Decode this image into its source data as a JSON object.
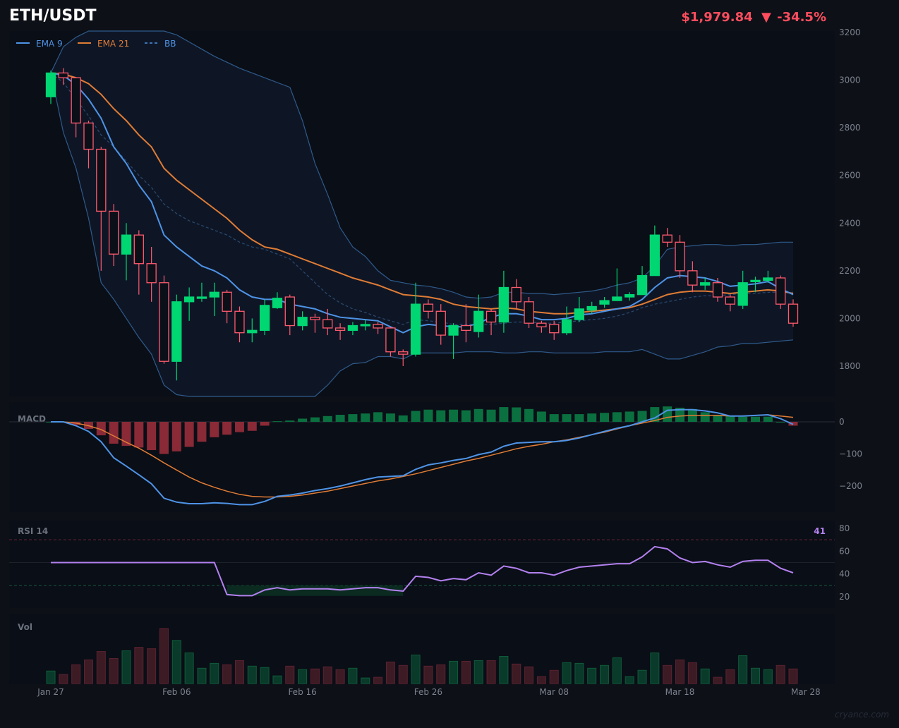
{
  "header": {
    "symbol": "ETH/USDT",
    "price": "$1,979.84",
    "change_arrow": "▼",
    "change_pct": "-34.5%"
  },
  "colors": {
    "up": "#00d672",
    "down": "#ff5a6e",
    "ema9": "#4e93e6",
    "ema21": "#e07c35",
    "bb": "#2f5a8a",
    "rsi": "#b381f0",
    "macd_pos": "#0b7040",
    "macd_neg": "#8a2a37",
    "vol_up": "#0a3a2a",
    "vol_down": "#3d1b24"
  },
  "legend": {
    "ema9": "EMA 9",
    "ema21": "EMA 21",
    "bb": "BB"
  },
  "panes": {
    "macd_label": "MACD",
    "rsi_label": "RSI 14",
    "rsi_value": "41",
    "vol_label": "Vol"
  },
  "watermark": "cryance.com",
  "chart_data": [
    {
      "type": "candlestick",
      "title": "ETH/USDT",
      "x_ticks": [
        "Jan 27",
        "Feb 06",
        "Feb 16",
        "Feb 26",
        "Mar 08",
        "Mar 18",
        "Mar 28"
      ],
      "y_ticks": [
        1800,
        2000,
        2200,
        2400,
        2600,
        2800,
        3000,
        3200
      ],
      "ylim": [
        1650,
        3200
      ],
      "ohlc": [
        [
          2930,
          3030,
          3040,
          2900
        ],
        [
          3030,
          3010,
          3050,
          2980
        ],
        [
          3010,
          2820,
          3010,
          2760
        ],
        [
          2820,
          2710,
          2830,
          2630
        ],
        [
          2710,
          2450,
          2720,
          2200
        ],
        [
          2450,
          2270,
          2480,
          2220
        ],
        [
          2270,
          2350,
          2400,
          2160
        ],
        [
          2350,
          2230,
          2370,
          2100
        ],
        [
          2230,
          2150,
          2300,
          2070
        ],
        [
          2150,
          1820,
          2180,
          1810
        ],
        [
          1820,
          2070,
          2100,
          1740
        ],
        [
          2070,
          2090,
          2130,
          1990
        ],
        [
          2085,
          2090,
          2150,
          2070
        ],
        [
          2090,
          2110,
          2150,
          2010
        ],
        [
          2110,
          2030,
          2120,
          1980
        ],
        [
          2030,
          1940,
          2050,
          1900
        ],
        [
          1940,
          1950,
          2000,
          1900
        ],
        [
          1950,
          2055,
          2080,
          1930
        ],
        [
          2045,
          2085,
          2110,
          2040
        ],
        [
          2090,
          1970,
          2100,
          1930
        ],
        [
          1970,
          2005,
          2030,
          1950
        ],
        [
          2005,
          1995,
          2020,
          1940
        ],
        [
          1995,
          1960,
          2040,
          1930
        ],
        [
          1960,
          1950,
          1980,
          1910
        ],
        [
          1950,
          1970,
          1985,
          1930
        ],
        [
          1970,
          1975,
          1995,
          1950
        ],
        [
          1975,
          1960,
          1985,
          1935
        ],
        [
          1960,
          1860,
          1965,
          1840
        ],
        [
          1860,
          1850,
          1870,
          1800
        ],
        [
          1850,
          2060,
          2150,
          1840
        ],
        [
          2060,
          2030,
          2080,
          2000
        ],
        [
          2030,
          1930,
          2060,
          1890
        ],
        [
          1930,
          1970,
          1980,
          1830
        ],
        [
          1970,
          1950,
          2060,
          1900
        ],
        [
          1945,
          2030,
          2100,
          1920
        ],
        [
          2030,
          1985,
          2040,
          1930
        ],
        [
          1985,
          2130,
          2200,
          1940
        ],
        [
          2130,
          2070,
          2165,
          2040
        ],
        [
          2070,
          1980,
          2090,
          1960
        ],
        [
          1980,
          1965,
          1990,
          1940
        ],
        [
          1975,
          1940,
          1990,
          1910
        ],
        [
          1940,
          1995,
          2050,
          1930
        ],
        [
          1995,
          2040,
          2090,
          1985
        ],
        [
          2035,
          2050,
          2070,
          2020
        ],
        [
          2060,
          2075,
          2090,
          2045
        ],
        [
          2075,
          2090,
          2210,
          2080
        ],
        [
          2090,
          2100,
          2110,
          2075
        ],
        [
          2100,
          2180,
          2220,
          2100
        ],
        [
          2180,
          2350,
          2390,
          2180
        ],
        [
          2350,
          2320,
          2380,
          2300
        ],
        [
          2320,
          2200,
          2350,
          2170
        ],
        [
          2200,
          2140,
          2240,
          2110
        ],
        [
          2140,
          2150,
          2170,
          2120
        ],
        [
          2150,
          2090,
          2170,
          2070
        ],
        [
          2090,
          2060,
          2100,
          2030
        ],
        [
          2055,
          2150,
          2200,
          2040
        ],
        [
          2155,
          2160,
          2175,
          2110
        ],
        [
          2160,
          2170,
          2200,
          2150
        ],
        [
          2170,
          2060,
          2180,
          2040
        ],
        [
          2060,
          1980,
          2080,
          1965
        ]
      ],
      "ema9": [
        3030,
        3020,
        2980,
        2920,
        2840,
        2720,
        2650,
        2560,
        2490,
        2350,
        2300,
        2260,
        2220,
        2200,
        2170,
        2120,
        2090,
        2080,
        2080,
        2060,
        2050,
        2040,
        2020,
        2005,
        2000,
        1995,
        1990,
        1965,
        1940,
        1965,
        1975,
        1970,
        1965,
        1965,
        1980,
        2005,
        2020,
        2020,
        2010,
        1995,
        1995,
        2000,
        2015,
        2020,
        2030,
        2040,
        2050,
        2080,
        2130,
        2170,
        2180,
        2175,
        2170,
        2155,
        2135,
        2140,
        2145,
        2155,
        2125,
        2100
      ],
      "ema21": [
        3030,
        3025,
        3010,
        2985,
        2940,
        2880,
        2830,
        2770,
        2720,
        2630,
        2580,
        2540,
        2500,
        2460,
        2420,
        2370,
        2330,
        2300,
        2290,
        2270,
        2250,
        2230,
        2210,
        2190,
        2170,
        2155,
        2140,
        2120,
        2100,
        2095,
        2090,
        2080,
        2060,
        2050,
        2045,
        2040,
        2045,
        2040,
        2030,
        2025,
        2020,
        2020,
        2025,
        2030,
        2035,
        2040,
        2045,
        2060,
        2080,
        2100,
        2110,
        2115,
        2115,
        2110,
        2105,
        2110,
        2115,
        2120,
        2115,
        2105
      ],
      "bb_upper": [
        3030,
        3140,
        3180,
        3230,
        3250,
        3250,
        3240,
        3230,
        3220,
        3210,
        3190,
        3160,
        3130,
        3100,
        3075,
        3050,
        3030,
        3010,
        2990,
        2970,
        2830,
        2650,
        2520,
        2380,
        2300,
        2260,
        2200,
        2160,
        2150,
        2140,
        2135,
        2125,
        2110,
        2090,
        2085,
        2090,
        2110,
        2110,
        2105,
        2105,
        2100,
        2105,
        2110,
        2115,
        2125,
        2140,
        2150,
        2170,
        2220,
        2290,
        2300,
        2305,
        2310,
        2310,
        2305,
        2310,
        2310,
        2315,
        2320,
        2320
      ],
      "bb_mid": [
        3030,
        2990,
        2920,
        2850,
        2770,
        2720,
        2660,
        2600,
        2550,
        2480,
        2440,
        2410,
        2390,
        2370,
        2350,
        2320,
        2300,
        2290,
        2270,
        2250,
        2200,
        2150,
        2100,
        2065,
        2040,
        2025,
        2005,
        1990,
        1975,
        1995,
        1990,
        1985,
        1975,
        1975,
        1975,
        1975,
        1980,
        1985,
        1985,
        1980,
        1980,
        1985,
        1990,
        1995,
        2000,
        2010,
        2025,
        2045,
        2060,
        2070,
        2080,
        2090,
        2095,
        2095,
        2100,
        2105,
        2105,
        2110,
        2110,
        2110
      ],
      "bb_lower": [
        3030,
        2780,
        2630,
        2420,
        2150,
        2080,
        2000,
        1920,
        1850,
        1720,
        1680,
        1640,
        1590,
        1560,
        1550,
        1530,
        1530,
        1520,
        1515,
        1510,
        1560,
        1660,
        1720,
        1780,
        1810,
        1815,
        1840,
        1840,
        1830,
        1855,
        1855,
        1855,
        1855,
        1860,
        1860,
        1860,
        1855,
        1855,
        1860,
        1860,
        1855,
        1855,
        1855,
        1855,
        1860,
        1860,
        1860,
        1870,
        1850,
        1830,
        1830,
        1845,
        1860,
        1880,
        1885,
        1895,
        1895,
        1900,
        1905,
        1910
      ]
    },
    {
      "type": "bar+line",
      "title": "MACD",
      "y_ticks": [
        0,
        -100,
        -200
      ],
      "ylim": [
        -270,
        40
      ],
      "histogram": [
        0,
        -2,
        -10,
        -22,
        -42,
        -68,
        -75,
        -80,
        -88,
        -100,
        -92,
        -78,
        -62,
        -48,
        -40,
        -32,
        -28,
        -12,
        2,
        4,
        10,
        14,
        18,
        22,
        24,
        26,
        30,
        26,
        20,
        34,
        38,
        36,
        38,
        36,
        40,
        38,
        46,
        45,
        40,
        32,
        24,
        24,
        24,
        26,
        28,
        30,
        32,
        34,
        46,
        48,
        44,
        40,
        30,
        22,
        18,
        16,
        16,
        16,
        0,
        -12
      ],
      "macd": [
        0,
        0,
        -12,
        -30,
        -62,
        -112,
        -138,
        -165,
        -193,
        -238,
        -250,
        -255,
        -255,
        -252,
        -254,
        -258,
        -258,
        -248,
        -232,
        -228,
        -222,
        -214,
        -208,
        -200,
        -190,
        -180,
        -172,
        -170,
        -168,
        -148,
        -134,
        -128,
        -120,
        -114,
        -102,
        -94,
        -76,
        -66,
        -64,
        -62,
        -62,
        -58,
        -50,
        -40,
        -30,
        -20,
        -12,
        0,
        12,
        36,
        38,
        38,
        34,
        28,
        18,
        18,
        20,
        22,
        10,
        -8
      ],
      "signal": [
        0,
        0,
        -4,
        -12,
        -24,
        -44,
        -64,
        -82,
        -104,
        -128,
        -150,
        -172,
        -190,
        -204,
        -216,
        -226,
        -232,
        -234,
        -234,
        -232,
        -228,
        -222,
        -216,
        -208,
        -200,
        -192,
        -184,
        -178,
        -170,
        -162,
        -152,
        -142,
        -132,
        -122,
        -114,
        -104,
        -94,
        -84,
        -76,
        -70,
        -62,
        -56,
        -48,
        -40,
        -32,
        -22,
        -12,
        -4,
        4,
        14,
        18,
        20,
        20,
        20,
        18,
        18,
        20,
        22,
        18,
        14
      ]
    },
    {
      "type": "line",
      "title": "RSI 14",
      "y_ticks": [
        20,
        40,
        60,
        80
      ],
      "ylim": [
        10,
        85
      ],
      "overbought": 70,
      "oversold": 30,
      "midline": 50,
      "current": 41,
      "values": [
        50,
        50,
        50,
        50,
        50,
        50,
        50,
        50,
        50,
        50,
        50,
        50,
        50,
        50,
        22,
        21,
        21,
        26,
        28,
        26,
        27,
        27,
        27,
        26,
        27,
        28,
        28,
        26,
        25,
        38,
        37,
        34,
        36,
        35,
        41,
        39,
        47,
        45,
        41,
        41,
        39,
        43,
        46,
        47,
        48,
        49,
        49,
        55,
        64,
        62,
        54,
        50,
        51,
        48,
        46,
        51,
        52,
        52,
        45,
        41
      ]
    },
    {
      "type": "bar",
      "title": "Vol",
      "values": [
        18,
        13,
        27,
        34,
        46,
        36,
        47,
        52,
        50,
        79,
        62,
        44,
        22,
        29,
        27,
        33,
        25,
        23,
        11,
        25,
        20,
        21,
        24,
        20,
        22,
        8,
        9,
        31,
        26,
        41,
        25,
        27,
        32,
        32,
        33,
        33,
        39,
        28,
        24,
        10,
        19,
        30,
        29,
        22,
        26,
        37,
        10,
        19,
        44,
        26,
        34,
        30,
        21,
        9,
        20,
        40,
        22,
        20,
        26,
        21
      ],
      "colors": [
        "up",
        "down",
        "down",
        "down",
        "down",
        "down",
        "up",
        "down",
        "down",
        "down",
        "up",
        "up",
        "up",
        "up",
        "down",
        "down",
        "up",
        "up",
        "up",
        "down",
        "up",
        "down",
        "down",
        "down",
        "up",
        "up",
        "down",
        "down",
        "down",
        "up",
        "down",
        "down",
        "up",
        "down",
        "up",
        "down",
        "up",
        "down",
        "down",
        "down",
        "down",
        "up",
        "up",
        "up",
        "up",
        "up",
        "up",
        "up",
        "up",
        "down",
        "down",
        "down",
        "up",
        "down",
        "down",
        "up",
        "up",
        "up",
        "down",
        "down"
      ]
    }
  ]
}
